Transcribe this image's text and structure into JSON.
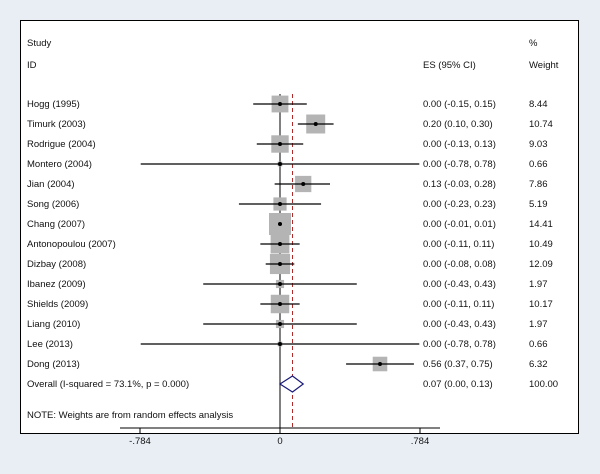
{
  "chart_data": {
    "type": "forest",
    "header": {
      "col1_line1": "Study",
      "col1_line2": "ID",
      "col2": "ES (95% CI)",
      "col3_line1": "%",
      "col3_line2": "Weight"
    },
    "studies": [
      {
        "label": "Hogg (1995)",
        "es": 0.0,
        "lo": -0.15,
        "hi": 0.15,
        "weight": 8.44,
        "ci_text": "0.00 (-0.15, 0.15)",
        "weight_text": "8.44"
      },
      {
        "label": "Timurk (2003)",
        "es": 0.2,
        "lo": 0.1,
        "hi": 0.3,
        "weight": 10.74,
        "ci_text": "0.20 (0.10, 0.30)",
        "weight_text": "10.74"
      },
      {
        "label": "Rodrigue (2004)",
        "es": 0.0,
        "lo": -0.13,
        "hi": 0.13,
        "weight": 9.03,
        "ci_text": "0.00 (-0.13, 0.13)",
        "weight_text": "9.03"
      },
      {
        "label": "Montero (2004)",
        "es": 0.0,
        "lo": -0.78,
        "hi": 0.78,
        "weight": 0.66,
        "ci_text": "0.00 (-0.78, 0.78)",
        "weight_text": "0.66"
      },
      {
        "label": "Jian (2004)",
        "es": 0.13,
        "lo": -0.03,
        "hi": 0.28,
        "weight": 7.86,
        "ci_text": "0.13 (-0.03, 0.28)",
        "weight_text": "7.86"
      },
      {
        "label": "Song (2006)",
        "es": 0.0,
        "lo": -0.23,
        "hi": 0.23,
        "weight": 5.19,
        "ci_text": "0.00 (-0.23, 0.23)",
        "weight_text": "5.19"
      },
      {
        "label": "Chang (2007)",
        "es": 0.0,
        "lo": -0.01,
        "hi": 0.01,
        "weight": 14.41,
        "ci_text": "0.00 (-0.01, 0.01)",
        "weight_text": "14.41"
      },
      {
        "label": "Antonopoulou (2007)",
        "es": 0.0,
        "lo": -0.11,
        "hi": 0.11,
        "weight": 10.49,
        "ci_text": "0.00 (-0.11, 0.11)",
        "weight_text": "10.49"
      },
      {
        "label": "Dizbay (2008)",
        "es": 0.0,
        "lo": -0.08,
        "hi": 0.08,
        "weight": 12.09,
        "ci_text": "0.00 (-0.08, 0.08)",
        "weight_text": "12.09"
      },
      {
        "label": "Ibanez (2009)",
        "es": 0.0,
        "lo": -0.43,
        "hi": 0.43,
        "weight": 1.97,
        "ci_text": "0.00 (-0.43, 0.43)",
        "weight_text": "1.97"
      },
      {
        "label": "Shields (2009)",
        "es": 0.0,
        "lo": -0.11,
        "hi": 0.11,
        "weight": 10.17,
        "ci_text": "0.00 (-0.11, 0.11)",
        "weight_text": "10.17"
      },
      {
        "label": "Liang (2010)",
        "es": 0.0,
        "lo": -0.43,
        "hi": 0.43,
        "weight": 1.97,
        "ci_text": "0.00 (-0.43, 0.43)",
        "weight_text": "1.97"
      },
      {
        "label": "Lee (2013)",
        "es": 0.0,
        "lo": -0.78,
        "hi": 0.78,
        "weight": 0.66,
        "ci_text": "0.00 (-0.78, 0.78)",
        "weight_text": "0.66"
      },
      {
        "label": "Dong (2013)",
        "es": 0.56,
        "lo": 0.37,
        "hi": 0.75,
        "weight": 6.32,
        "ci_text": "0.56 (0.37, 0.75)",
        "weight_text": "6.32"
      }
    ],
    "overall": {
      "label": "Overall  (I-squared = 73.1%, p = 0.000)",
      "es": 0.07,
      "lo": 0.0,
      "hi": 0.13,
      "weight": 100.0,
      "ci_text": "0.07 (0.00, 0.13)",
      "weight_text": "100.00"
    },
    "note": "NOTE: Weights are from random effects analysis",
    "x_ticks": [
      {
        "value": -0.784,
        "label": "-.784"
      },
      {
        "value": 0,
        "label": "0"
      },
      {
        "value": 0.784,
        "label": ".784"
      }
    ],
    "xlim": [
      -0.784,
      0.784
    ],
    "null_line": 0,
    "pooled_line": 0.07,
    "colors": {
      "background": "#e9eef5",
      "box": "#b4b4b4",
      "ci_line": "#000000",
      "pooled_line": "#b02a2a",
      "diamond": "#1a1a7a"
    }
  }
}
